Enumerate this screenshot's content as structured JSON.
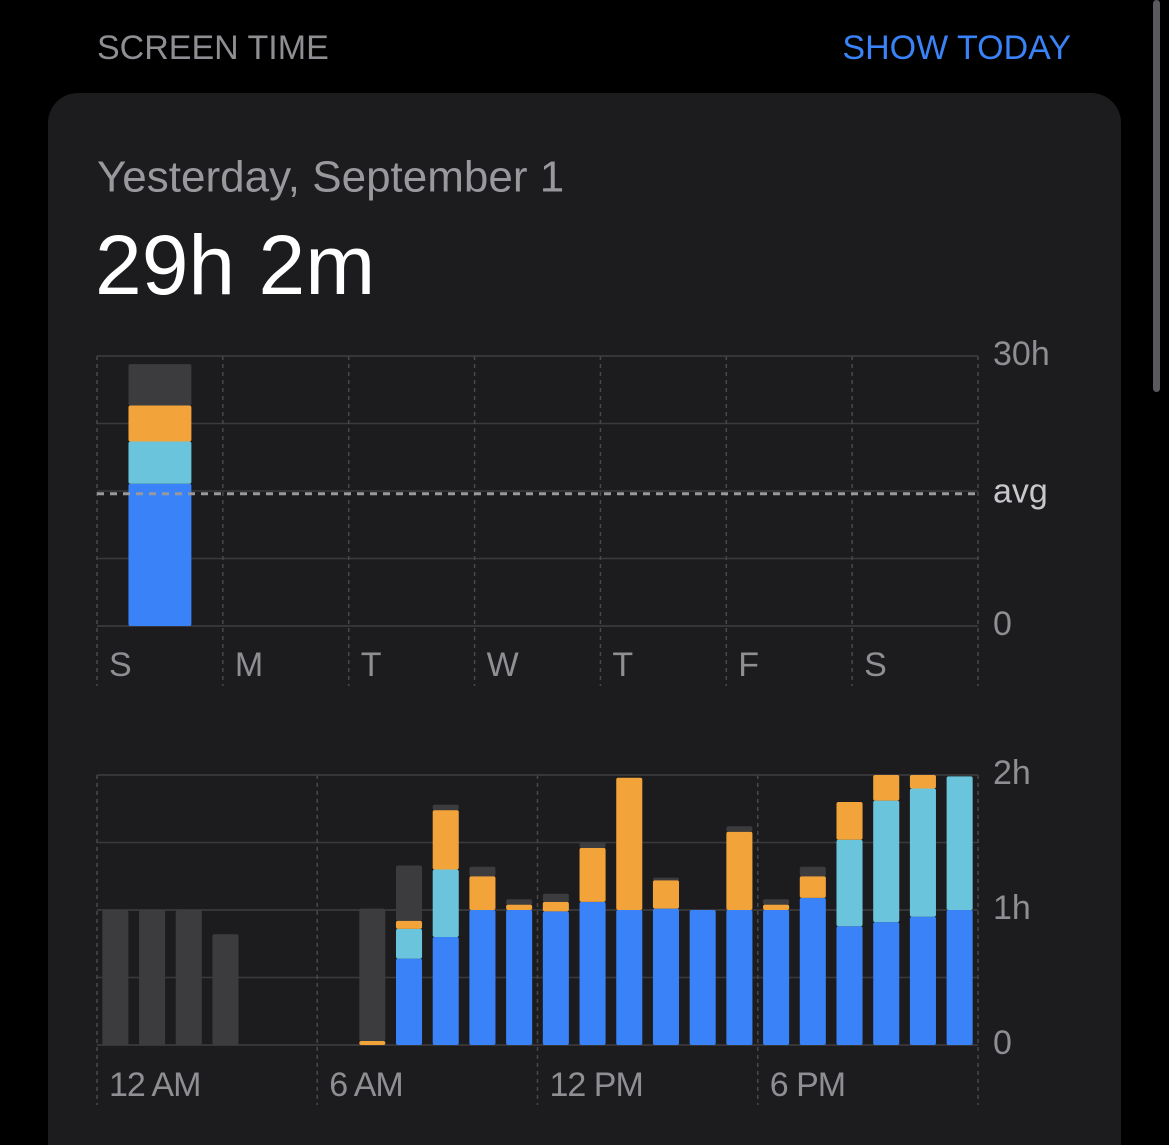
{
  "header": {
    "title": "SCREEN TIME",
    "action": "SHOW TODAY"
  },
  "card": {
    "date": "Yesterday, September 1",
    "total": "29h 2m"
  },
  "chart_data": [
    {
      "type": "bar",
      "stacked": true,
      "categories": [
        "S",
        "M",
        "T",
        "W",
        "T",
        "F",
        "S"
      ],
      "series": [
        {
          "color": "#3a82f7",
          "values": [
            15.8,
            null,
            null,
            null,
            null,
            null,
            null
          ]
        },
        {
          "color": "#6ac4dc",
          "values": [
            4.7,
            null,
            null,
            null,
            null,
            null,
            null
          ]
        },
        {
          "color": "#f2a33a",
          "values": [
            4.0,
            null,
            null,
            null,
            null,
            null,
            null
          ]
        },
        {
          "color": "#3c3c3f",
          "values": [
            4.6,
            null,
            null,
            null,
            null,
            null,
            null
          ]
        }
      ],
      "ylim": [
        0,
        30
      ],
      "yticks": [
        0,
        {
          "value": 30,
          "label": "30h"
        }
      ],
      "avg_line": {
        "value": 14.7,
        "label": "avg"
      }
    },
    {
      "type": "bar",
      "stacked": true,
      "categories": [
        "12 AM",
        null,
        null,
        null,
        null,
        null,
        "6 AM",
        null,
        null,
        null,
        null,
        null,
        "12 PM",
        null,
        null,
        null,
        null,
        null,
        "6 PM",
        null,
        null,
        null,
        null,
        null
      ],
      "series": [
        {
          "color": "#3a82f7",
          "values": [
            null,
            null,
            null,
            null,
            null,
            null,
            null,
            null,
            0.64,
            0.8,
            1.0,
            1.0,
            0.99,
            1.06,
            1.0,
            1.01,
            1.0,
            1.0,
            1.0,
            1.09,
            0.88,
            0.91,
            0.95,
            1.0
          ]
        },
        {
          "color": "#6ac4dc",
          "values": [
            null,
            null,
            null,
            null,
            null,
            null,
            null,
            null,
            0.22,
            0.5,
            null,
            null,
            null,
            null,
            null,
            null,
            null,
            null,
            null,
            null,
            0.64,
            0.9,
            0.95,
            0.99
          ]
        },
        {
          "color": "#f2a33a",
          "values": [
            null,
            null,
            null,
            null,
            null,
            null,
            null,
            0.03,
            0.06,
            0.44,
            0.25,
            0.04,
            0.07,
            0.4,
            0.98,
            0.21,
            null,
            0.58,
            0.04,
            0.16,
            0.28,
            0.19,
            0.1,
            null
          ]
        },
        {
          "color": "#3c3c3f",
          "values": [
            1.0,
            1.0,
            1.0,
            0.82,
            null,
            null,
            null,
            0.98,
            0.41,
            0.04,
            0.07,
            0.04,
            0.06,
            0.04,
            null,
            0.02,
            null,
            0.04,
            0.04,
            0.07,
            null,
            null,
            null,
            null
          ]
        }
      ],
      "ylim": [
        0,
        2
      ],
      "yticks": [
        0,
        {
          "value": 1,
          "label": "1h"
        },
        {
          "value": 2,
          "label": "2h"
        }
      ]
    }
  ]
}
